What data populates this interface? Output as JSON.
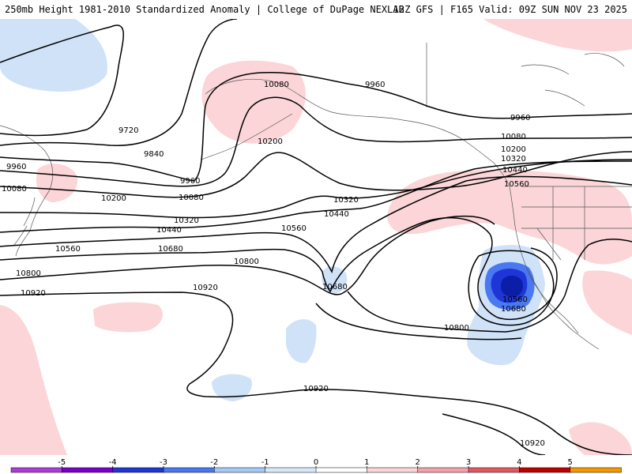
{
  "header": {
    "title_left": "250mb Height 1981-2010 Standardized Anomaly | College of DuPage NEXLAB",
    "title_right": "12Z GFS | F165 Valid: 09Z SUN NOV 23 2025"
  },
  "colorbar": {
    "tick_labels": [
      "-5",
      "-4",
      "-3",
      "-2",
      "-1",
      "0",
      "1",
      "2",
      "3",
      "4",
      "5"
    ],
    "colors": [
      "#b03cd8",
      "#7a00c8",
      "#1f36d6",
      "#4a78f0",
      "#a6caf6",
      "#d8e8fb",
      "#ffffff",
      "#fbd5d8",
      "#f2a2aa",
      "#e05a60",
      "#c00000",
      "#f29a00"
    ]
  },
  "contours": {
    "labels": [
      {
        "id": "l9720",
        "text": "9720"
      },
      {
        "id": "l9840",
        "text": "9840"
      },
      {
        "id": "l9960a",
        "text": "9960"
      },
      {
        "id": "l9960b",
        "text": "9960"
      },
      {
        "id": "l9960c",
        "text": "9960"
      },
      {
        "id": "l9960d",
        "text": "9960"
      },
      {
        "id": "l10080a",
        "text": "10080"
      },
      {
        "id": "l10080b",
        "text": "10080"
      },
      {
        "id": "l10080c",
        "text": "10080"
      },
      {
        "id": "l10080d",
        "text": "10080"
      },
      {
        "id": "l10200a",
        "text": "10200"
      },
      {
        "id": "l10200b",
        "text": "10200"
      },
      {
        "id": "l10200c",
        "text": "10200"
      },
      {
        "id": "l10320a",
        "text": "10320"
      },
      {
        "id": "l10320b",
        "text": "10320"
      },
      {
        "id": "l10320c",
        "text": "10320"
      },
      {
        "id": "l10440a",
        "text": "10440"
      },
      {
        "id": "l10440b",
        "text": "10440"
      },
      {
        "id": "l10440c",
        "text": "10440"
      },
      {
        "id": "l10560a",
        "text": "10560"
      },
      {
        "id": "l10560b",
        "text": "10560"
      },
      {
        "id": "l10560c",
        "text": "10560"
      },
      {
        "id": "l10560d",
        "text": "10560"
      },
      {
        "id": "l10680a",
        "text": "10680"
      },
      {
        "id": "l10680b",
        "text": "10680"
      },
      {
        "id": "l10680c",
        "text": "10680"
      },
      {
        "id": "l10800a",
        "text": "10800"
      },
      {
        "id": "l10800b",
        "text": "10800"
      },
      {
        "id": "l10800c",
        "text": "10800"
      },
      {
        "id": "l10920a",
        "text": "10920"
      },
      {
        "id": "l10920b",
        "text": "10920"
      },
      {
        "id": "l10920c",
        "text": "10920"
      },
      {
        "id": "l10920d",
        "text": "10920"
      }
    ]
  }
}
